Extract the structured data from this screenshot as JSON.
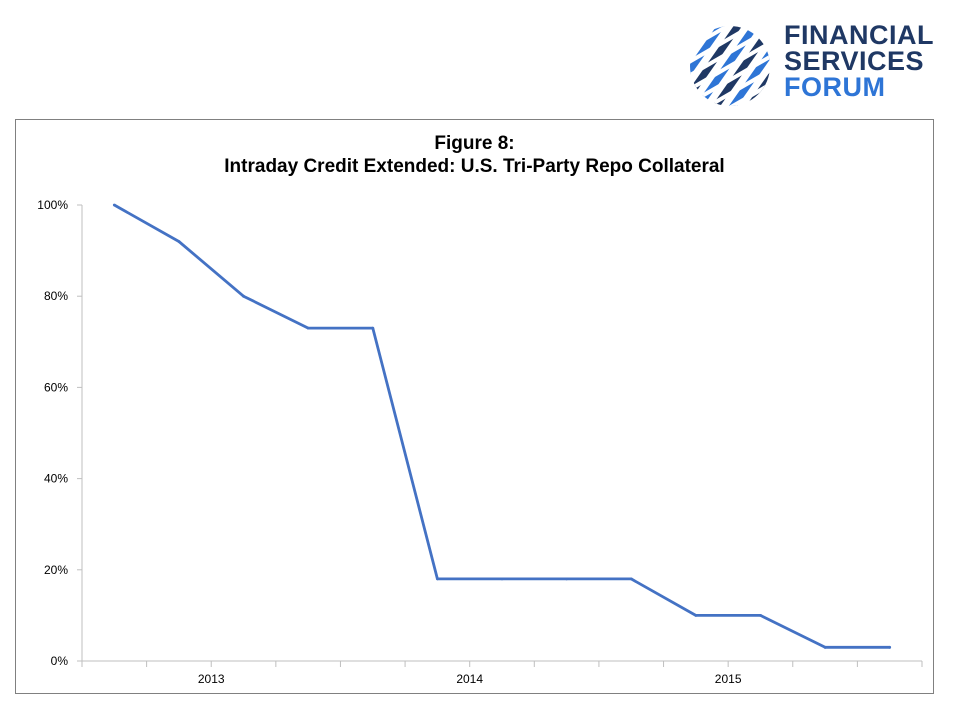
{
  "logo": {
    "line1": "FINANCIAL",
    "line2": "SERVICES",
    "line3": "FORUM",
    "color_dark": "#1f3864",
    "color_accent": "#2e75d6"
  },
  "chart_data": {
    "type": "line",
    "title": "Figure 8:",
    "subtitle": "Intraday Credit Extended:  U.S. Tri-Party Repo Collateral",
    "xlabel": "",
    "ylabel": "",
    "x_tick_labels": [
      "2013",
      "2014",
      "2015"
    ],
    "y_tick_labels": [
      "0%",
      "20%",
      "40%",
      "60%",
      "80%",
      "100%"
    ],
    "ylim": [
      0,
      100
    ],
    "grid": false,
    "line_color": "#4472c4",
    "series": [
      {
        "values": [
          100,
          92,
          80,
          73,
          73,
          18,
          18,
          18,
          18,
          10,
          10,
          3,
          3
        ]
      }
    ]
  }
}
